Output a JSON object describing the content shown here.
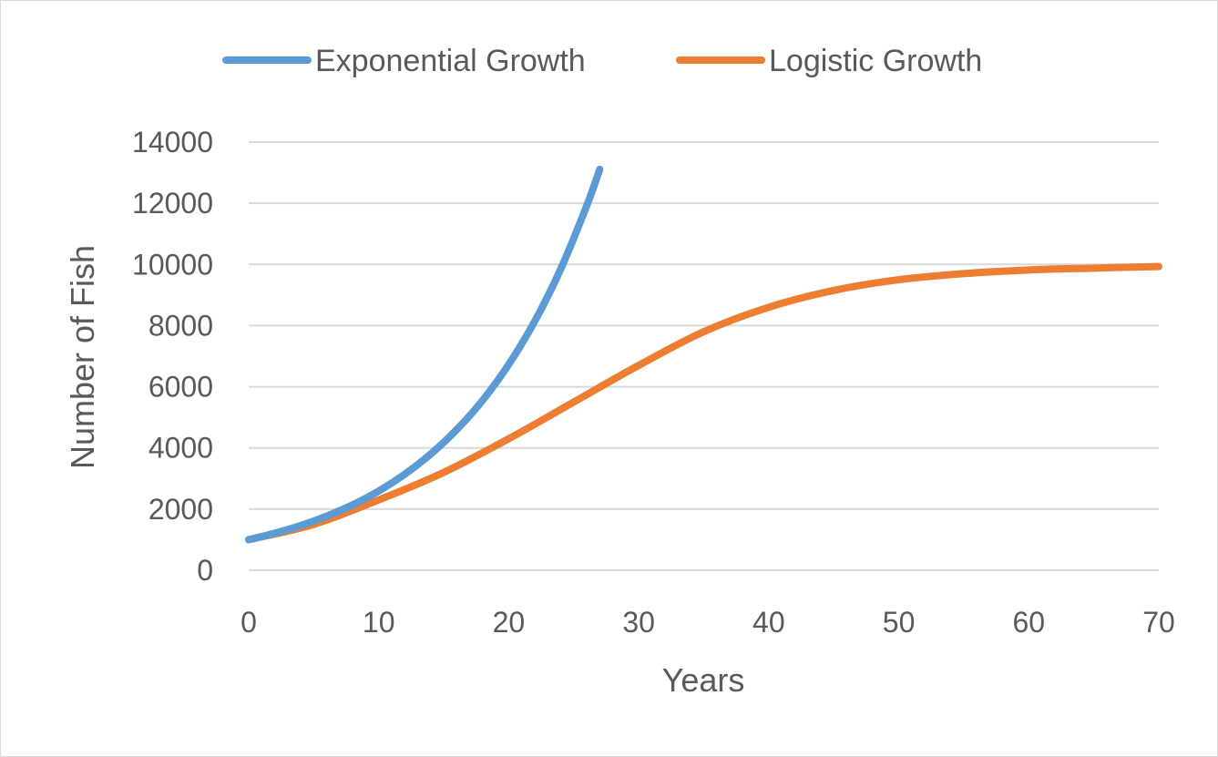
{
  "chart_data": {
    "type": "line",
    "title": "",
    "xlabel": "Years",
    "ylabel": "Number of Fish",
    "xlim": [
      0,
      70
    ],
    "ylim": [
      0,
      14000
    ],
    "x_ticks": [
      "0",
      "10",
      "20",
      "30",
      "40",
      "50",
      "60",
      "70"
    ],
    "y_ticks": [
      "0",
      "2000",
      "4000",
      "6000",
      "8000",
      "10000",
      "12000",
      "14000"
    ],
    "grid": true,
    "legend": "top-center",
    "series": [
      {
        "name": "Exponential Growth",
        "color": "#5b9bd5",
        "x": [
          0,
          2,
          4,
          6,
          8,
          10,
          12,
          14,
          16,
          18,
          20,
          22,
          24,
          26,
          27
        ],
        "y": [
          1000,
          1210,
          1460,
          1770,
          2140,
          2590,
          3140,
          3800,
          4600,
          5560,
          6730,
          8140,
          9850,
          11920,
          13110
        ]
      },
      {
        "name": "Logistic Growth",
        "color": "#ed7d31",
        "x": [
          0,
          5,
          10,
          15,
          20,
          25,
          30,
          35,
          40,
          45,
          50,
          55,
          60,
          65,
          70
        ],
        "y": [
          1000,
          1500,
          2300,
          3200,
          4300,
          5500,
          6700,
          7800,
          8600,
          9150,
          9500,
          9700,
          9820,
          9880,
          9930
        ]
      }
    ]
  }
}
